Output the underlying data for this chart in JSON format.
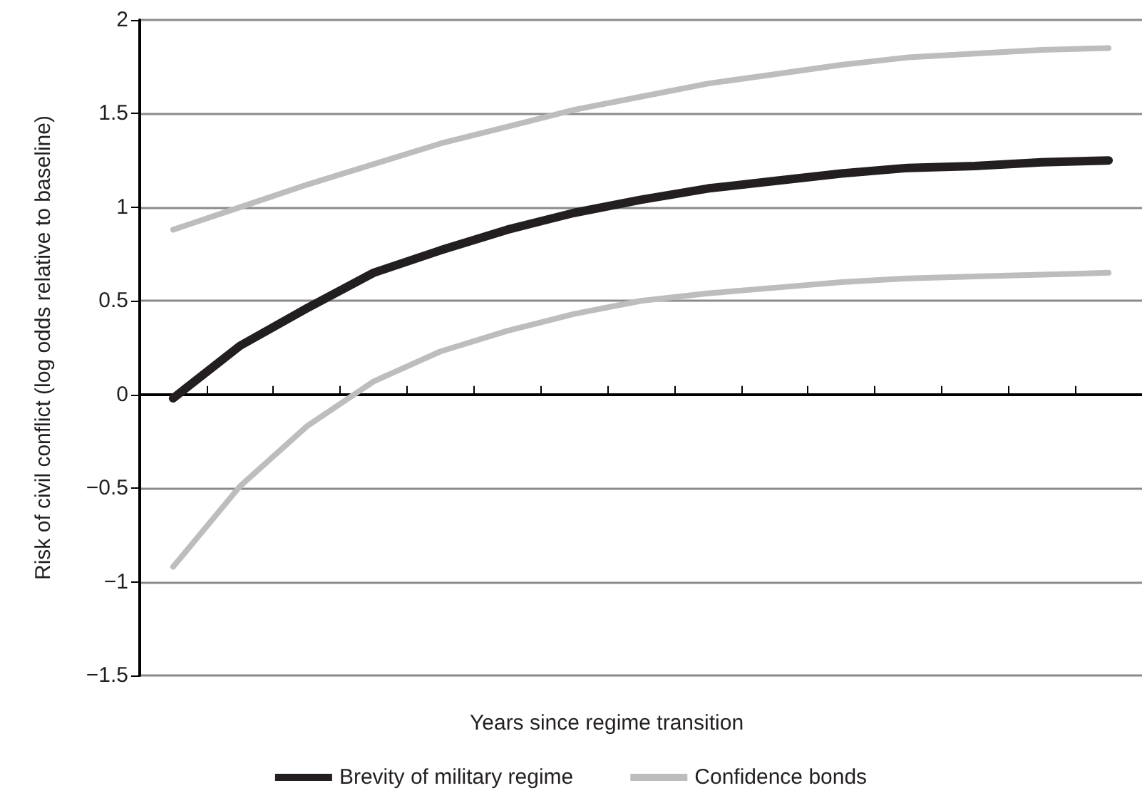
{
  "chart_data": {
    "type": "line",
    "xlabel": "Years since regime transition",
    "ylabel": "Risk of civil conflict (log odds relative to baseline)",
    "categories": [
      null,
      null,
      null,
      null,
      null,
      null,
      null,
      null,
      null,
      null,
      null,
      null,
      null,
      null,
      null
    ],
    "series": [
      {
        "name": "Brevity of military regime",
        "color": "#231f20",
        "values": [
          -0.02,
          0.26,
          0.46,
          0.65,
          0.77,
          0.88,
          0.97,
          1.04,
          1.1,
          1.14,
          1.18,
          1.21,
          1.22,
          1.24,
          1.25
        ]
      },
      {
        "name": "Confidence bonds",
        "color": "#bdbdbd",
        "values": [
          0.88,
          1.0,
          1.12,
          1.23,
          1.34,
          1.43,
          1.52,
          1.59,
          1.66,
          1.71,
          1.76,
          1.8,
          1.82,
          1.84,
          1.85
        ]
      },
      {
        "color": "#bdbdbd",
        "values": [
          -0.92,
          -0.49,
          -0.17,
          0.07,
          0.23,
          0.34,
          0.43,
          0.5,
          0.54,
          0.57,
          0.6,
          0.62,
          0.63,
          0.64,
          0.65
        ]
      }
    ],
    "ylim": [
      -1.5,
      2
    ],
    "yticks": [
      {
        "value": -1.5,
        "label": "−1.5"
      },
      {
        "value": -1,
        "label": "−1"
      },
      {
        "value": -0.5,
        "label": "−0.5"
      },
      0,
      0.5,
      1,
      1.5,
      2
    ],
    "grid": "y",
    "legend": "bottom",
    "marker": "none",
    "line_style": "solid",
    "tick_labels": "y"
  }
}
